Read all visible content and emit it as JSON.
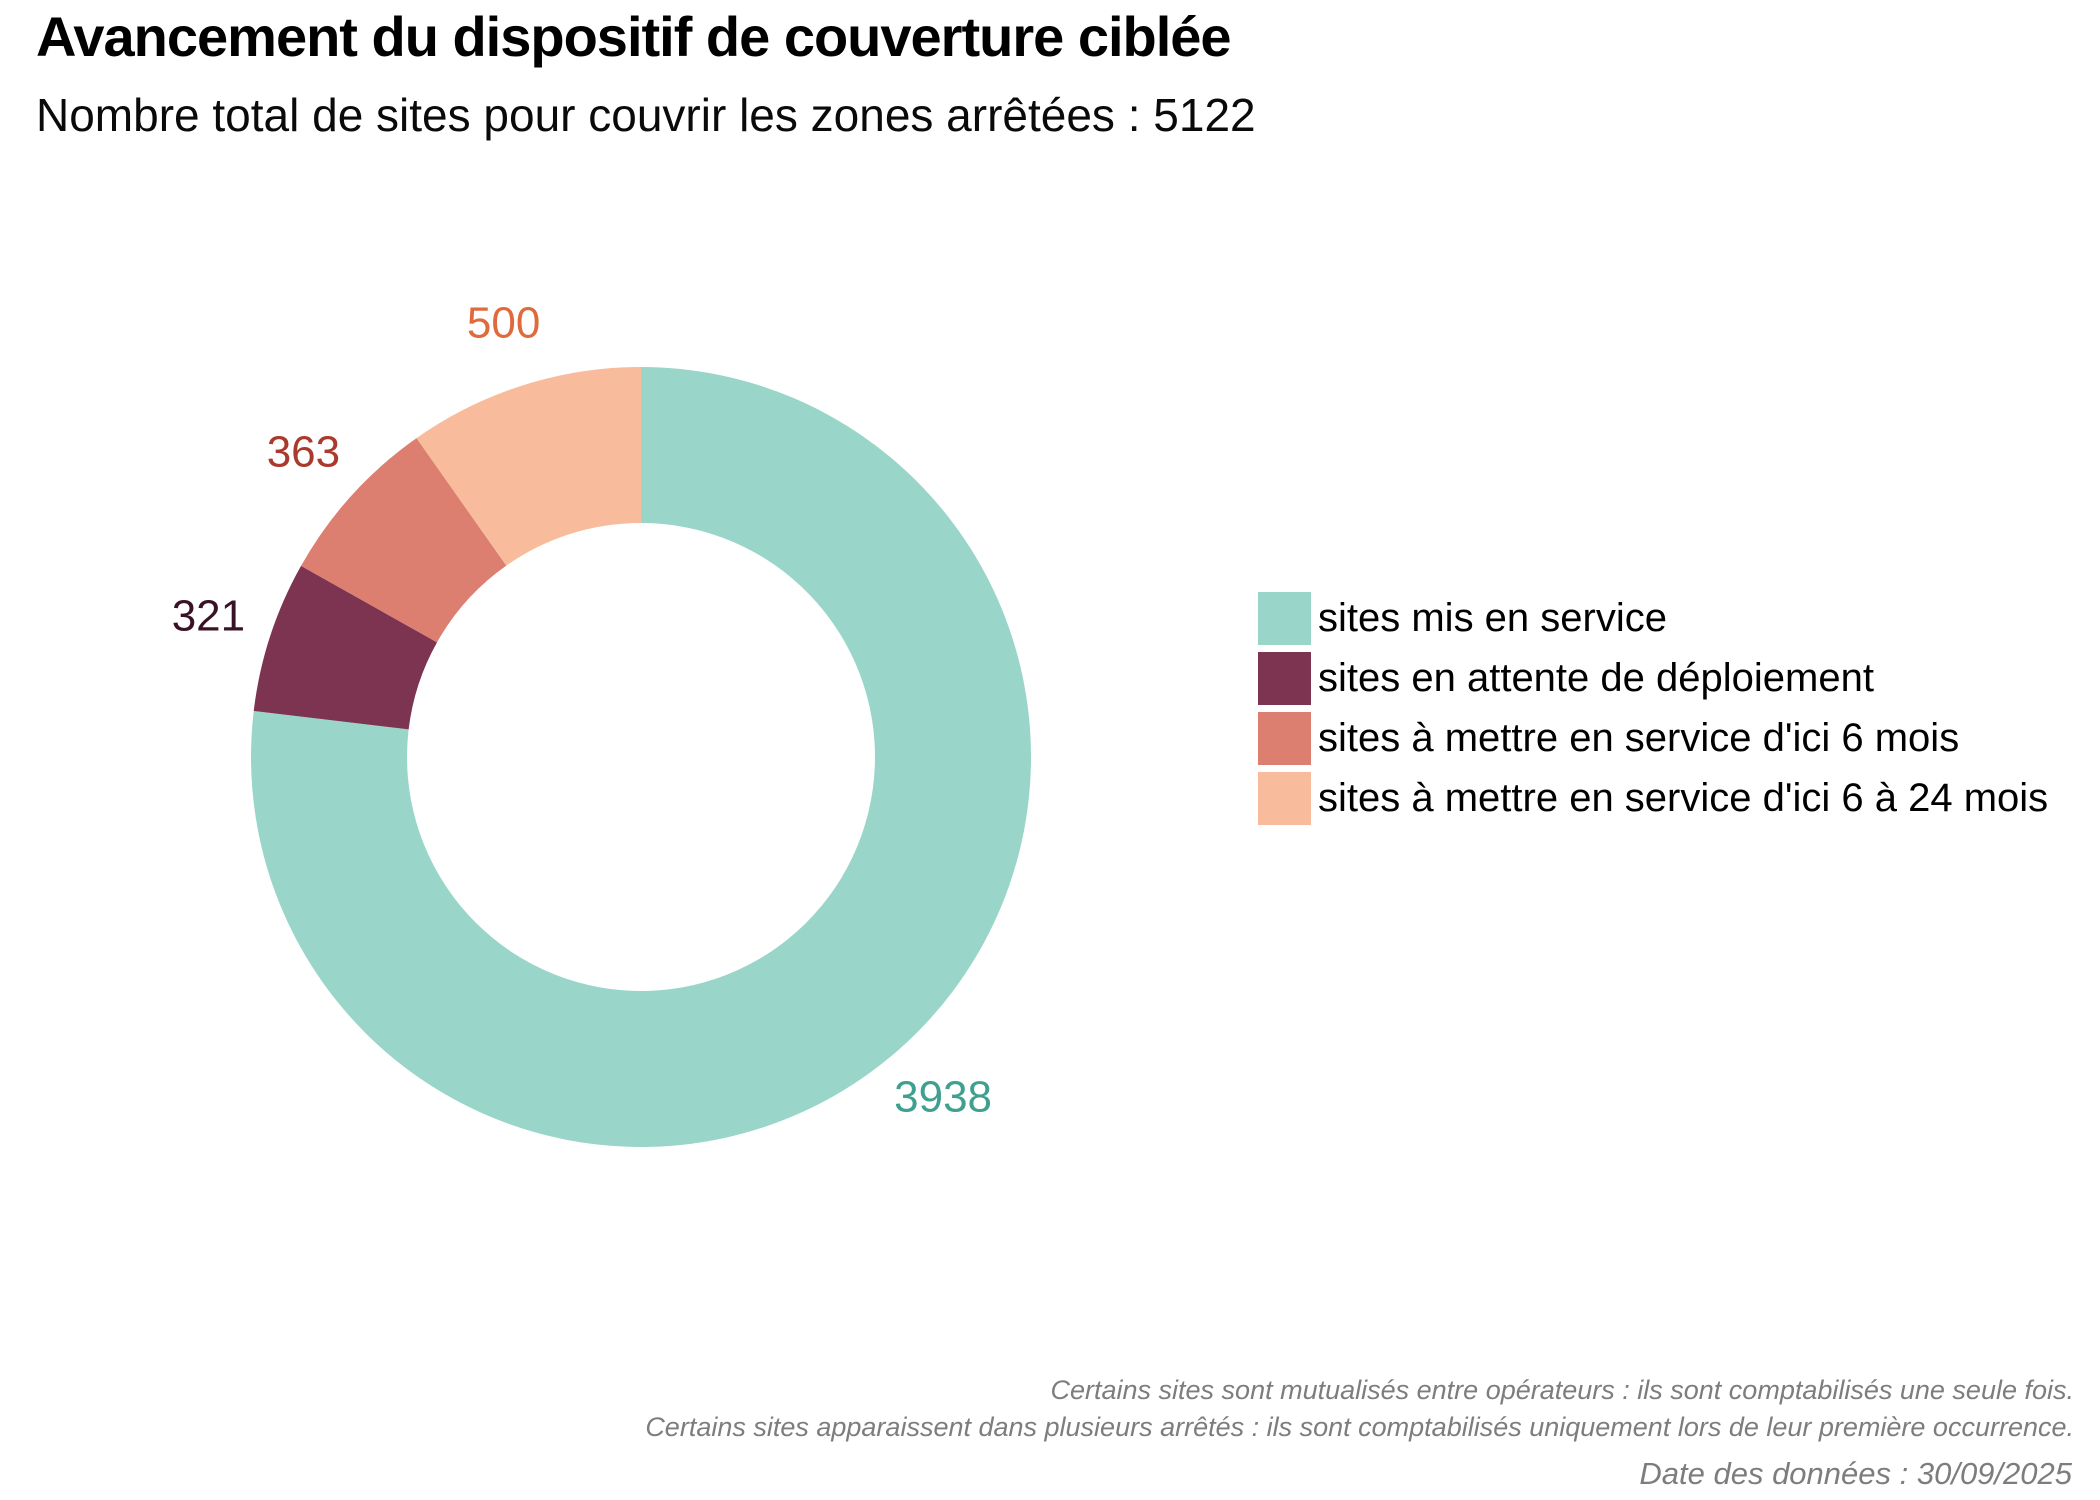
{
  "header": {
    "title": "Avancement du dispositif de couverture ciblée",
    "subtitle": "Nombre total de sites pour couvrir les zones arrêtées : 5122"
  },
  "chart_data": {
    "type": "pie",
    "donut": true,
    "title": "Avancement du dispositif de couverture ciblée",
    "subtitle": "Nombre total de sites pour couvrir les zones arrêtées : 5122",
    "total": 5122,
    "start_angle_deg": 0,
    "direction": "clockwise",
    "inner_radius_ratio": 0.6,
    "legend_position": "right",
    "segments": [
      {
        "label": "sites mis en service",
        "value": 3938,
        "color": "#99D5C9",
        "label_color": "#3FA090"
      },
      {
        "label": "sites en attente de déploiement",
        "value": 321,
        "color": "#7D3450",
        "label_color": "#3A1226"
      },
      {
        "label": "sites à mettre en service d'ici 6 mois",
        "value": 363,
        "color": "#DC7E70",
        "label_color": "#A93A2C"
      },
      {
        "label": "sites à mettre en service d'ici 6 à 24 mois",
        "value": 500,
        "color": "#F8BC9C",
        "label_color": "#DF6A3B"
      }
    ]
  },
  "footer": {
    "notes": [
      "Certains sites sont mutualisés entre opérateurs : ils sont comptabilisés une seule fois.",
      "Certains sites apparaissent dans plusieurs arrêtés : ils sont comptabilisés uniquement lors de leur première occurrence."
    ],
    "date_line": "Date des données : 30/09/2025"
  }
}
